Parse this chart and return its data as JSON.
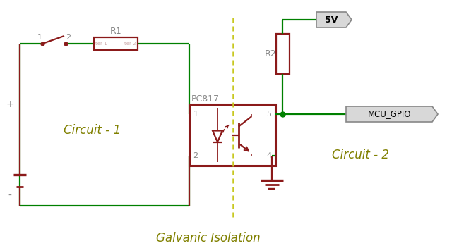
{
  "bg_color": "#ffffff",
  "dark_red": "#8B1A1A",
  "green": "#008000",
  "olive": "#808000",
  "gray": "#888888",
  "dashed_color": "#c8c820",
  "title": "Galvanic Isolation",
  "circuit1_label": "Circuit - 1",
  "circuit2_label": "Circuit - 2",
  "r1_label": "R1",
  "r2_label": "R2",
  "pc817_label": "PC817",
  "vcc_label": "5V",
  "gpio_label": "MCU_GPIO",
  "figsize": [
    6.5,
    3.52
  ],
  "dpi": 100
}
